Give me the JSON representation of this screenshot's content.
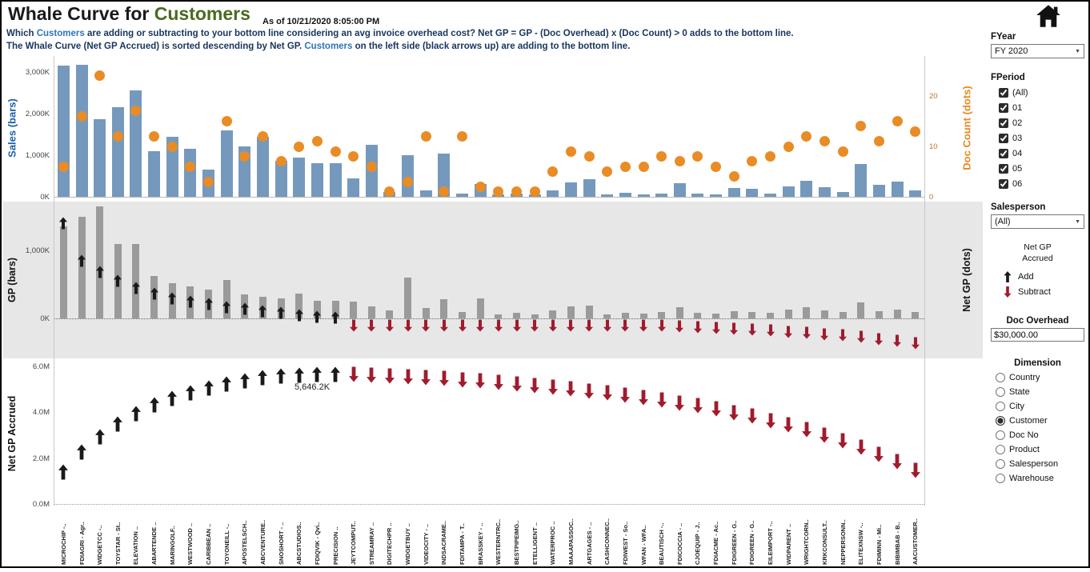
{
  "header": {
    "title_main": "Whale Curve for ",
    "title_accent": "Customers",
    "as_of": "As of  10/21/2020 8:05:00 PM",
    "line1_pre": "Which ",
    "line1_link": "Customers",
    "line1_post": " are adding or subtracting to your bottom line considering an avg invoice overhead cost? Net GP = GP - (Doc Overhead)  x  (Doc Count) > 0 adds to the bottom line.",
    "line2_pre": "The Whale Curve (Net GP Accrued) is sorted descending by Net GP.  ",
    "line2_link": "Customers",
    "line2_post": " on the left side (black arrows up) are adding to the bottom line."
  },
  "colors": {
    "bar_blue": "#7599bd",
    "dot_orange": "#e98c25",
    "bar_gray": "#9a9a9a",
    "arrow_black": "#1a1a1a",
    "arrow_red": "#a01b2e",
    "title_green": "#4a6a1f",
    "subtitle_navy": "#17365d",
    "link_blue": "#2e75b6",
    "sales_axis_blue": "#1f5fa9",
    "doc_axis_orange": "#e8871e"
  },
  "sidebar": {
    "fyear": {
      "label": "FYear",
      "value": "FY 2020"
    },
    "fperiod": {
      "label": "FPeriod",
      "options": [
        "(All)",
        "01",
        "02",
        "03",
        "04",
        "05",
        "06"
      ],
      "checked": [
        true,
        true,
        true,
        true,
        true,
        true,
        true
      ]
    },
    "salesperson": {
      "label": "Salesperson",
      "value": "(All)"
    },
    "legend": {
      "title_line1": "Net GP",
      "title_line2": "Accrued",
      "add_label": "Add",
      "subtract_label": "Subtract"
    },
    "doc_overhead": {
      "label": "Doc Overhead",
      "value": "$30,000.00"
    },
    "dimension": {
      "label": "Dimension",
      "options": [
        "Country",
        "State",
        "City",
        "Customer",
        "Doc No",
        "Product",
        "Salesperson",
        "Warehouse"
      ],
      "selected": "Customer"
    }
  },
  "chart_data": [
    {
      "type": "bar",
      "title": "Sales (bars) with Doc Count (dots)",
      "ylabel_left": "Sales (bars)",
      "ylabel_right": "Doc Count (dots)",
      "ylim_left_k": [
        0,
        3300
      ],
      "ylim_right": [
        0,
        26
      ],
      "yticks_left": [
        {
          "label": "3,000K",
          "k": 3000
        },
        {
          "label": "2,000K",
          "k": 2000
        },
        {
          "label": "1,000K",
          "k": 1000
        },
        {
          "label": "0K",
          "k": 0
        }
      ],
      "yticks_right": [
        {
          "label": "20",
          "v": 20
        },
        {
          "label": "10",
          "v": 10
        },
        {
          "label": "0",
          "v": 0
        }
      ],
      "categories": [
        "MICROCHIP -..",
        "FDIAGRI - Agr..",
        "WIDGETCC -..",
        "TOYSTAR - St..",
        "ELEVATION ..",
        "ABARTENDE ..",
        "MARINGOLF..",
        "WESTWOOD ..",
        "CARIBBEAN ..",
        "TOYONEILL -..",
        "APOSTELSCH..",
        "ABCVENTURE..",
        "SNOSHORT - ..",
        "ABCSTUDIOS..",
        "FDIQVIK - Qvi..",
        "PRECISION ..",
        "JEYTCOMPUT..",
        "STREAMRAY ..",
        "DIGITECHPR ..",
        "WIDGETBUY ..",
        "VIDEOCITY - ..",
        "INDSACRAME..",
        "FDITAMPA - T..",
        "BRASSKEY - ..",
        "WESTERNTRC..",
        "BESTPIPEIMG..",
        "ETELLIGENT ..",
        "WATERPROC ..",
        "MAAAPASSOC..",
        "ARTGAGES - ..",
        "CASHCONNEC..",
        "FDIWEST - So..",
        "WFAN - WFA..",
        "BEAUTISCH -..",
        "FDICOCCIA - ..",
        "CJOEQUIP - J..",
        "FDIACME - Ac..",
        "FDIGREEN - G..",
        "FDIGREEN - G..",
        "EILEIMPORT -..",
        "WIDPARENT ..",
        "WRIGHTCORN..",
        "KRKCONSULT..",
        "NEPPERSONN..",
        "ELITEXNSW -..",
        "FDIMINN - Mi..",
        "BIBIMBAB - B..",
        "AACUSTOMER.."
      ],
      "sales_k": [
        3150,
        3180,
        1870,
        2160,
        2560,
        1100,
        1450,
        1160,
        650,
        1600,
        1210,
        1440,
        860,
        950,
        810,
        800,
        450,
        1250,
        120,
        1000,
        150,
        1030,
        80,
        300,
        60,
        70,
        60,
        160,
        350,
        420,
        60,
        90,
        60,
        80,
        330,
        70,
        60,
        210,
        200,
        80,
        250,
        390,
        230,
        110,
        790,
        290,
        360,
        150
      ],
      "doc_count": [
        6,
        16,
        24,
        12,
        17,
        12,
        10,
        6,
        3,
        15,
        8,
        12,
        7,
        10,
        11,
        9,
        8,
        6,
        1,
        3,
        12,
        1,
        12,
        2,
        1,
        1,
        1,
        5,
        9,
        8,
        5,
        6,
        6,
        8,
        7,
        8,
        6,
        4,
        7,
        8,
        10,
        12,
        11,
        9,
        14,
        11,
        15,
        13
      ]
    },
    {
      "type": "bar",
      "title": "GP (bars) with Net GP arrows",
      "ylabel_left": "GP (bars)",
      "ylabel_right": "Net GP (dots)",
      "yticks_left": [
        {
          "label": "1,000K",
          "k": 1000
        },
        {
          "label": "0K",
          "k": 0
        }
      ],
      "gp_k": [
        1350,
        1500,
        1650,
        1100,
        1100,
        620,
        520,
        470,
        420,
        560,
        350,
        320,
        300,
        360,
        260,
        260,
        250,
        180,
        120,
        600,
        150,
        280,
        100,
        300,
        60,
        80,
        60,
        120,
        180,
        190,
        60,
        80,
        70,
        90,
        160,
        80,
        70,
        110,
        100,
        80,
        130,
        160,
        120,
        90,
        230,
        110,
        130,
        90
      ],
      "net_gp_k": [
        1400,
        850,
        680,
        550,
        450,
        370,
        300,
        250,
        210,
        170,
        140,
        110,
        80,
        50,
        25,
        11.2,
        -20,
        -25,
        -30,
        -35,
        -40,
        -45,
        -50,
        -55,
        -60,
        -65,
        -70,
        -75,
        -80,
        -85,
        -90,
        -95,
        -100,
        -110,
        -120,
        -130,
        -140,
        -150,
        -165,
        -180,
        -195,
        -210,
        -230,
        -250,
        -275,
        -300,
        -330,
        -361.2
      ]
    },
    {
      "type": "line",
      "title": "Net GP Accrued whale curve",
      "ylabel_left": "Net GP Accrued",
      "yticks_left": [
        {
          "label": "6.0M",
          "k": 6000
        },
        {
          "label": "4.0M",
          "k": 4000
        },
        {
          "label": "2.0M",
          "k": 2000
        },
        {
          "label": "0.0M",
          "k": 0
        }
      ],
      "annotation": "5,646.2K",
      "cumulative_k": [
        1400,
        2250,
        2930,
        3480,
        3930,
        4300,
        4600,
        4850,
        5060,
        5230,
        5370,
        5480,
        5560,
        5610,
        5635,
        5646.2,
        5626.2,
        5601.2,
        5571.2,
        5536.2,
        5496.2,
        5451.2,
        5401.2,
        5346.2,
        5286.2,
        5221.2,
        5151.2,
        5076.2,
        4996.2,
        4911.2,
        4821.2,
        4726.2,
        4626.2,
        4516.2,
        4396.2,
        4266.2,
        4126.2,
        3976.2,
        3811.2,
        3631.2,
        3436.2,
        3226.2,
        2996.2,
        2746.2,
        2471.2,
        2171.2,
        1841.2,
        1480.0
      ]
    }
  ]
}
